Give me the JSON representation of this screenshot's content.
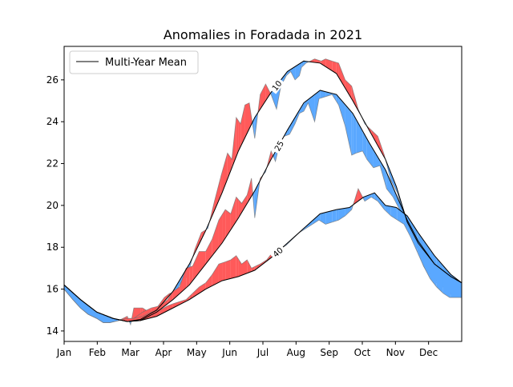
{
  "chart_data": {
    "type": "area",
    "title": "Anomalies in Foradada in 2021",
    "xlabel": "",
    "ylabel": "",
    "x_ticks": [
      "Jan",
      "Feb",
      "Mar",
      "Apr",
      "May",
      "Jun",
      "Jul",
      "Aug",
      "Sep",
      "Oct",
      "Nov",
      "Dec"
    ],
    "xlim": [
      0,
      365
    ],
    "ylim": [
      13.5,
      27.6
    ],
    "y_ticks": [
      14,
      16,
      18,
      20,
      22,
      24,
      26
    ],
    "grid": false,
    "legend": {
      "position": "top-left",
      "entries": [
        "Multi-Year Mean"
      ]
    },
    "colors": {
      "above": "#ff5a5a",
      "below": "#5aa8ff",
      "mean": "#000000",
      "observed": "#6f6f6f"
    },
    "series": [
      {
        "label": "10",
        "mean": [
          [
            0,
            16.2
          ],
          [
            15,
            15.5
          ],
          [
            30,
            14.9
          ],
          [
            45,
            14.6
          ],
          [
            58,
            14.45
          ],
          [
            70,
            14.55
          ],
          [
            85,
            15.0
          ],
          [
            100,
            15.9
          ],
          [
            115,
            17.2
          ],
          [
            130,
            18.8
          ],
          [
            145,
            20.6
          ],
          [
            160,
            22.6
          ],
          [
            175,
            24.2
          ],
          [
            190,
            25.4
          ],
          [
            205,
            26.4
          ],
          [
            220,
            26.9
          ],
          [
            235,
            26.8
          ],
          [
            250,
            26.3
          ],
          [
            265,
            25.0
          ],
          [
            280,
            23.6
          ],
          [
            295,
            22.2
          ],
          [
            305,
            20.9
          ],
          [
            315,
            19.2
          ],
          [
            325,
            18.2
          ],
          [
            340,
            17.2
          ],
          [
            355,
            16.6
          ],
          [
            365,
            16.3
          ]
        ],
        "observed": [
          [
            0,
            16.0
          ],
          [
            8,
            15.5
          ],
          [
            15,
            15.1
          ],
          [
            22,
            14.8
          ],
          [
            30,
            14.6
          ],
          [
            36,
            14.4
          ],
          [
            42,
            14.4
          ],
          [
            50,
            14.5
          ],
          [
            58,
            14.7
          ],
          [
            61,
            14.3
          ],
          [
            64,
            15.1
          ],
          [
            72,
            15.1
          ],
          [
            78,
            14.9
          ],
          [
            85,
            15.1
          ],
          [
            92,
            15.6
          ],
          [
            97,
            15.8
          ],
          [
            102,
            15.8
          ],
          [
            108,
            16.4
          ],
          [
            113,
            16.6
          ],
          [
            120,
            17.9
          ],
          [
            126,
            18.7
          ],
          [
            132,
            18.9
          ],
          [
            138,
            20.2
          ],
          [
            144,
            21.4
          ],
          [
            150,
            22.5
          ],
          [
            154,
            22.2
          ],
          [
            158,
            24.2
          ],
          [
            162,
            23.9
          ],
          [
            166,
            24.8
          ],
          [
            170,
            24.9
          ],
          [
            175,
            23.2
          ],
          [
            180,
            25.3
          ],
          [
            185,
            25.8
          ],
          [
            190,
            25.3
          ],
          [
            195,
            24.6
          ],
          [
            199,
            25.7
          ],
          [
            204,
            26.2
          ],
          [
            208,
            26.4
          ],
          [
            212,
            26.0
          ],
          [
            216,
            26.2
          ],
          [
            218,
            26.6
          ],
          [
            222,
            26.8
          ],
          [
            226,
            26.9
          ],
          [
            230,
            27.0
          ],
          [
            236,
            26.9
          ],
          [
            240,
            27.0
          ],
          [
            246,
            26.9
          ],
          [
            252,
            26.8
          ],
          [
            258,
            26.0
          ],
          [
            264,
            25.7
          ],
          [
            270,
            24.6
          ],
          [
            276,
            23.9
          ],
          [
            282,
            23.6
          ],
          [
            288,
            23.3
          ],
          [
            294,
            22.4
          ],
          [
            300,
            21.2
          ],
          [
            306,
            20.6
          ],
          [
            312,
            19.5
          ],
          [
            318,
            19.0
          ],
          [
            324,
            18.0
          ],
          [
            330,
            17.1
          ],
          [
            336,
            16.6
          ],
          [
            342,
            16.3
          ],
          [
            348,
            16.2
          ],
          [
            355,
            15.8
          ],
          [
            365,
            15.8
          ]
        ]
      },
      {
        "label": "25",
        "mean": [
          [
            0,
            16.2
          ],
          [
            15,
            15.5
          ],
          [
            30,
            14.9
          ],
          [
            45,
            14.6
          ],
          [
            58,
            14.45
          ],
          [
            70,
            14.5
          ],
          [
            85,
            14.9
          ],
          [
            100,
            15.5
          ],
          [
            115,
            16.2
          ],
          [
            130,
            17.2
          ],
          [
            145,
            18.2
          ],
          [
            160,
            19.4
          ],
          [
            175,
            20.7
          ],
          [
            190,
            22.2
          ],
          [
            205,
            23.6
          ],
          [
            220,
            24.9
          ],
          [
            235,
            25.5
          ],
          [
            250,
            25.3
          ],
          [
            265,
            24.4
          ],
          [
            280,
            23.0
          ],
          [
            295,
            21.7
          ],
          [
            305,
            20.5
          ],
          [
            315,
            19.3
          ],
          [
            325,
            18.3
          ],
          [
            340,
            17.2
          ],
          [
            355,
            16.6
          ],
          [
            365,
            16.3
          ]
        ],
        "observed": [
          [
            0,
            16.0
          ],
          [
            8,
            15.5
          ],
          [
            15,
            15.1
          ],
          [
            22,
            14.8
          ],
          [
            30,
            14.6
          ],
          [
            36,
            14.4
          ],
          [
            42,
            14.4
          ],
          [
            50,
            14.5
          ],
          [
            58,
            14.6
          ],
          [
            64,
            14.6
          ],
          [
            72,
            14.9
          ],
          [
            80,
            15.1
          ],
          [
            88,
            15.2
          ],
          [
            95,
            15.5
          ],
          [
            100,
            15.9
          ],
          [
            106,
            16.1
          ],
          [
            112,
            17.0
          ],
          [
            118,
            17.1
          ],
          [
            124,
            17.8
          ],
          [
            130,
            17.8
          ],
          [
            136,
            18.4
          ],
          [
            142,
            19.3
          ],
          [
            148,
            19.8
          ],
          [
            153,
            19.6
          ],
          [
            158,
            20.4
          ],
          [
            163,
            20.1
          ],
          [
            168,
            20.5
          ],
          [
            172,
            21.3
          ],
          [
            175,
            19.4
          ],
          [
            180,
            21.3
          ],
          [
            185,
            21.6
          ],
          [
            190,
            22.6
          ],
          [
            194,
            22.1
          ],
          [
            198,
            23.0
          ],
          [
            202,
            23.3
          ],
          [
            207,
            23.4
          ],
          [
            212,
            23.9
          ],
          [
            216,
            24.4
          ],
          [
            220,
            24.5
          ],
          [
            224,
            24.9
          ],
          [
            230,
            24.0
          ],
          [
            234,
            25.1
          ],
          [
            240,
            25.2
          ],
          [
            246,
            25.3
          ],
          [
            252,
            24.8
          ],
          [
            258,
            23.8
          ],
          [
            264,
            22.4
          ],
          [
            268,
            22.5
          ],
          [
            274,
            22.6
          ],
          [
            278,
            22.2
          ],
          [
            284,
            21.8
          ],
          [
            290,
            21.9
          ],
          [
            296,
            20.8
          ],
          [
            302,
            20.4
          ],
          [
            308,
            19.8
          ],
          [
            314,
            19.2
          ],
          [
            320,
            18.4
          ],
          [
            326,
            17.8
          ],
          [
            332,
            17.1
          ],
          [
            338,
            16.6
          ],
          [
            344,
            16.3
          ],
          [
            350,
            16.0
          ],
          [
            356,
            15.7
          ],
          [
            365,
            15.8
          ]
        ]
      },
      {
        "label": "40",
        "mean": [
          [
            0,
            16.2
          ],
          [
            15,
            15.5
          ],
          [
            30,
            14.9
          ],
          [
            45,
            14.6
          ],
          [
            58,
            14.45
          ],
          [
            70,
            14.5
          ],
          [
            85,
            14.7
          ],
          [
            100,
            15.1
          ],
          [
            115,
            15.5
          ],
          [
            130,
            16.0
          ],
          [
            145,
            16.4
          ],
          [
            160,
            16.6
          ],
          [
            175,
            16.9
          ],
          [
            190,
            17.5
          ],
          [
            205,
            18.2
          ],
          [
            220,
            18.9
          ],
          [
            235,
            19.6
          ],
          [
            250,
            19.8
          ],
          [
            262,
            19.9
          ],
          [
            275,
            20.4
          ],
          [
            285,
            20.6
          ],
          [
            295,
            20.0
          ],
          [
            305,
            19.9
          ],
          [
            315,
            19.5
          ],
          [
            325,
            18.7
          ],
          [
            340,
            17.6
          ],
          [
            355,
            16.7
          ],
          [
            365,
            16.3
          ]
        ],
        "observed": [
          [
            0,
            16.0
          ],
          [
            8,
            15.5
          ],
          [
            15,
            15.1
          ],
          [
            22,
            14.8
          ],
          [
            30,
            14.6
          ],
          [
            36,
            14.4
          ],
          [
            42,
            14.4
          ],
          [
            50,
            14.5
          ],
          [
            58,
            14.6
          ],
          [
            64,
            14.6
          ],
          [
            72,
            14.7
          ],
          [
            80,
            14.9
          ],
          [
            88,
            15.0
          ],
          [
            95,
            15.2
          ],
          [
            100,
            15.3
          ],
          [
            106,
            15.4
          ],
          [
            112,
            15.5
          ],
          [
            118,
            15.8
          ],
          [
            124,
            16.1
          ],
          [
            130,
            16.3
          ],
          [
            136,
            16.7
          ],
          [
            142,
            17.2
          ],
          [
            148,
            17.3
          ],
          [
            153,
            17.4
          ],
          [
            158,
            17.6
          ],
          [
            163,
            17.2
          ],
          [
            168,
            17.4
          ],
          [
            172,
            17.0
          ],
          [
            176,
            17.1
          ],
          [
            180,
            17.2
          ],
          [
            186,
            17.4
          ],
          [
            192,
            17.8
          ],
          [
            198,
            17.9
          ],
          [
            204,
            18.1
          ],
          [
            210,
            18.4
          ],
          [
            216,
            18.7
          ],
          [
            222,
            18.9
          ],
          [
            228,
            19.1
          ],
          [
            234,
            19.3
          ],
          [
            240,
            19.1
          ],
          [
            246,
            19.2
          ],
          [
            252,
            19.3
          ],
          [
            258,
            19.5
          ],
          [
            264,
            19.8
          ],
          [
            270,
            20.8
          ],
          [
            276,
            20.2
          ],
          [
            282,
            20.4
          ],
          [
            288,
            20.2
          ],
          [
            294,
            19.8
          ],
          [
            300,
            19.5
          ],
          [
            306,
            19.3
          ],
          [
            312,
            19.1
          ],
          [
            318,
            18.5
          ],
          [
            324,
            17.8
          ],
          [
            330,
            17.1
          ],
          [
            336,
            16.5
          ],
          [
            342,
            16.1
          ],
          [
            348,
            15.8
          ],
          [
            354,
            15.6
          ],
          [
            365,
            15.6
          ]
        ]
      }
    ]
  }
}
